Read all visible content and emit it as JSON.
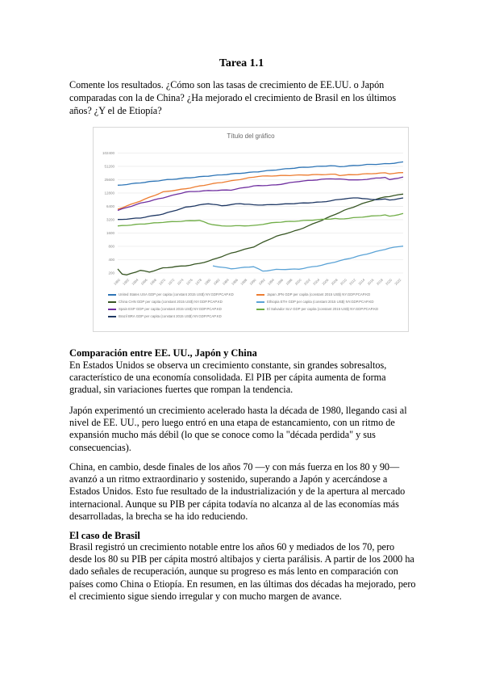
{
  "doc": {
    "title": "Tarea 1.1",
    "intro": "Comente los resultados. ¿Cómo son las tasas de crecimiento de EE.UU. o Japón comparadas con la de China? ¿Ha mejorado el crecimiento de Brasil en los últimos años? ¿Y el de Etiopía?",
    "section1_heading": "Comparación entre EE. UU., Japón y China",
    "p1": "En Estados Unidos se observa un crecimiento constante, sin grandes sobresaltos, característico de una economía consolidada. El PIB per cápita aumenta de forma gradual, sin variaciones fuertes que rompan la tendencia.",
    "p2": "Japón experimentó un crecimiento acelerado hasta la década de 1980, llegando casi al nivel de EE. UU., pero luego entró en una etapa de estancamiento, con un ritmo de expansión mucho más débil (lo que se conoce como la \"década perdida\" y sus consecuencias).",
    "p3": "China, en cambio, desde finales de los años 70 —y con más fuerza en los 80 y 90— avanzó a un ritmo extraordinario y sostenido, superando a Japón y acercándose a Estados Unidos. Esto fue resultado de la industrialización y de la apertura al mercado internacional. Aunque su PIB per cápita todavía no alcanza al de las economías más desarrolladas, la brecha se ha ido reduciendo.",
    "section2_heading": "El caso de Brasil",
    "p4": "Brasil registró un crecimiento notable entre los años 60 y mediados de los 70, pero desde los 80 su PIB per cápita mostró altibajos y cierta parálisis. A partir de los 2000 ha dado señales de recuperación, aunque su progreso es más lento en comparación con países como China o Etiopía. En resumen, en las últimas dos décadas ha mejorado, pero el crecimiento sigue siendo irregular y con mucho margen de avance."
  },
  "chart_data": {
    "type": "line",
    "title": "Título del gráfico",
    "y_scale": "log",
    "ylim": [
      200,
      100000
    ],
    "y_ticks": [
      "200",
      "400",
      "800",
      "1600",
      "3200",
      "6400",
      "12800",
      "25600",
      "51200",
      "102400"
    ],
    "x": [
      1960,
      1961,
      1962,
      1963,
      1964,
      1965,
      1966,
      1967,
      1968,
      1969,
      1970,
      1971,
      1972,
      1973,
      1974,
      1975,
      1976,
      1977,
      1978,
      1979,
      1980,
      1981,
      1982,
      1983,
      1984,
      1985,
      1986,
      1987,
      1988,
      1989,
      1990,
      1991,
      1992,
      1993,
      1994,
      1995,
      1996,
      1997,
      1998,
      1999,
      2000,
      2001,
      2002,
      2003,
      2004,
      2005,
      2006,
      2007,
      2008,
      2009,
      2010,
      2011,
      2012,
      2013,
      2014,
      2015,
      2016,
      2017,
      2018,
      2019,
      2020,
      2021,
      2022,
      2023
    ],
    "x_tick_labels": [
      "1960",
      "1962",
      "1964",
      "1966",
      "1968",
      "1970",
      "1972",
      "1974",
      "1976",
      "1978",
      "1980",
      "1982",
      "1984",
      "1986",
      "1988",
      "1990",
      "1992",
      "1994",
      "1996",
      "1998",
      "2000",
      "2002",
      "2004",
      "2006",
      "2008",
      "2010",
      "2012",
      "2014",
      "2016",
      "2018",
      "2020",
      "2022"
    ],
    "legend_position": "bottom",
    "series": [
      {
        "name": "United States USA GDP per capita (constant 2015 US$) NY.GDP.PCAP.KD",
        "color": "#2e75b6",
        "anchors": [
          [
            1960,
            19000
          ],
          [
            1970,
            25000
          ],
          [
            1980,
            31000
          ],
          [
            1990,
            38000
          ],
          [
            2000,
            48000
          ],
          [
            2007,
            53000
          ],
          [
            2009,
            50500
          ],
          [
            2015,
            56000
          ],
          [
            2020,
            59000
          ],
          [
            2023,
            64000
          ]
        ]
      },
      {
        "name": "Japan JPN GDP per capita (constant 2015 US$) NY.GDP.PCAP.KD",
        "color": "#ed7d31",
        "anchors": [
          [
            1960,
            5500
          ],
          [
            1965,
            8500
          ],
          [
            1970,
            13500
          ],
          [
            1975,
            16000
          ],
          [
            1980,
            20000
          ],
          [
            1985,
            24000
          ],
          [
            1991,
            30500
          ],
          [
            2000,
            32500
          ],
          [
            2008,
            34000
          ],
          [
            2009,
            32000
          ],
          [
            2019,
            36500
          ],
          [
            2020,
            35000
          ],
          [
            2023,
            37000
          ]
        ]
      },
      {
        "name": "China CHN GDP per capita (constant 2015 US$) NY.GDP.PCAP.KD",
        "color": "#375623",
        "anchors": [
          [
            1960,
            250
          ],
          [
            1961,
            190
          ],
          [
            1962,
            180
          ],
          [
            1965,
            230
          ],
          [
            1967,
            210
          ],
          [
            1970,
            260
          ],
          [
            1976,
            300
          ],
          [
            1978,
            330
          ],
          [
            1980,
            370
          ],
          [
            1985,
            560
          ],
          [
            1990,
            780
          ],
          [
            1993,
            1100
          ],
          [
            1995,
            1350
          ],
          [
            2000,
            1900
          ],
          [
            2005,
            3100
          ],
          [
            2010,
            5200
          ],
          [
            2015,
            8000
          ],
          [
            2019,
            10500
          ],
          [
            2020,
            10700
          ],
          [
            2023,
            12200
          ]
        ]
      },
      {
        "name": "Ethiopia ETH GDP per capita (constant 2015 US$) NY.GDP.PCAP.KD",
        "color": "#5ba3d6",
        "anchors": [
          [
            1981,
            290
          ],
          [
            1985,
            250
          ],
          [
            1990,
            280
          ],
          [
            1992,
            220
          ],
          [
            1995,
            240
          ],
          [
            2000,
            245
          ],
          [
            2005,
            300
          ],
          [
            2010,
            400
          ],
          [
            2015,
            540
          ],
          [
            2020,
            730
          ],
          [
            2023,
            820
          ]
        ]
      },
      {
        "name": "Spain ESP GDP per capita (constant 2015 US$) NY.GDP.PCAP.KD",
        "color": "#7030a0",
        "anchors": [
          [
            1960,
            5200
          ],
          [
            1965,
            7500
          ],
          [
            1970,
            10000
          ],
          [
            1975,
            13500
          ],
          [
            1980,
            14500
          ],
          [
            1985,
            15000
          ],
          [
            1990,
            18500
          ],
          [
            1995,
            19500
          ],
          [
            2000,
            23500
          ],
          [
            2007,
            27000
          ],
          [
            2013,
            25000
          ],
          [
            2019,
            29000
          ],
          [
            2020,
            25500
          ],
          [
            2023,
            29500
          ]
        ]
      },
      {
        "name": "El Salvador SLV GDP per capita (constant 2015 US$) NY.GDP.PCAP.KD",
        "color": "#70ad47",
        "anchors": [
          [
            1960,
            2300
          ],
          [
            1970,
            2800
          ],
          [
            1978,
            3100
          ],
          [
            1980,
            2600
          ],
          [
            1983,
            2300
          ],
          [
            1990,
            2350
          ],
          [
            1995,
            2800
          ],
          [
            2000,
            3000
          ],
          [
            2008,
            3400
          ],
          [
            2009,
            3300
          ],
          [
            2019,
            4100
          ],
          [
            2020,
            3800
          ],
          [
            2023,
            4400
          ]
        ]
      },
      {
        "name": "Brazil BRA GDP per capita (constant 2015 US$) NY.GDP.PCAP.KD",
        "color": "#1f3864",
        "anchors": [
          [
            1960,
            3200
          ],
          [
            1965,
            3500
          ],
          [
            1970,
            4300
          ],
          [
            1975,
            6100
          ],
          [
            1980,
            7400
          ],
          [
            1983,
            6600
          ],
          [
            1987,
            7400
          ],
          [
            1990,
            6900
          ],
          [
            1993,
            6900
          ],
          [
            2000,
            7500
          ],
          [
            2005,
            8000
          ],
          [
            2010,
            9500
          ],
          [
            2013,
            10000
          ],
          [
            2016,
            9100
          ],
          [
            2019,
            9300
          ],
          [
            2020,
            8900
          ],
          [
            2023,
            9800
          ]
        ]
      }
    ]
  }
}
